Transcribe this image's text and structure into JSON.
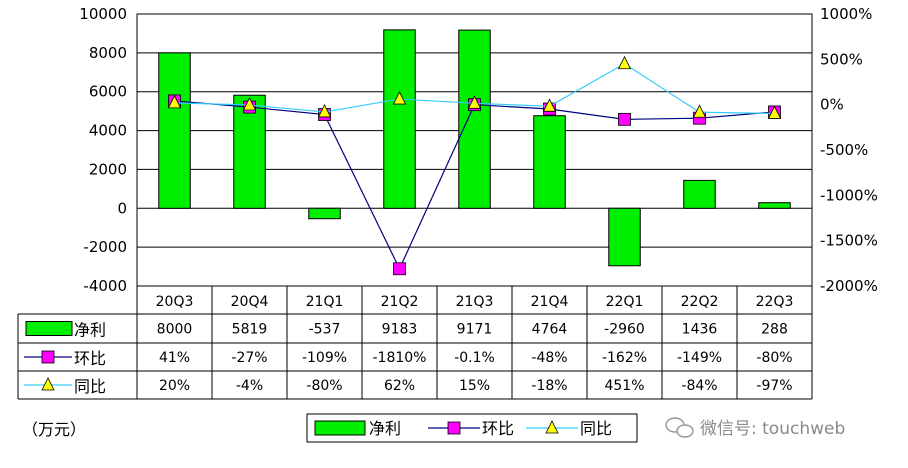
{
  "chart_data": {
    "type": "bar",
    "categories": [
      "20Q3",
      "20Q4",
      "21Q1",
      "21Q2",
      "21Q3",
      "21Q4",
      "22Q1",
      "22Q2",
      "22Q3"
    ],
    "series": [
      {
        "name": "净利",
        "kind": "bar",
        "axis": "left",
        "values": [
          8000,
          5819,
          -537,
          9183,
          9171,
          4764,
          -2960,
          1436,
          288
        ],
        "labels": [
          "8000",
          "5819",
          "-537",
          "9183",
          "9171",
          "4764",
          "-2960",
          "1436",
          "288"
        ],
        "color": "#00ee00"
      },
      {
        "name": "环比",
        "kind": "line",
        "axis": "right",
        "marker": "square",
        "values": [
          41,
          -27,
          -109,
          -1810,
          -0.1,
          -48,
          -162,
          -149,
          -80
        ],
        "labels": [
          "41%",
          "-27%",
          "-109%",
          "-1810%",
          "-0.1%",
          "-48%",
          "-162%",
          "-149%",
          "-80%"
        ],
        "color": "#000080",
        "marker_color": "#ff00ff"
      },
      {
        "name": "同比",
        "kind": "line",
        "axis": "right",
        "marker": "triangle",
        "values": [
          20,
          -4,
          -80,
          62,
          15,
          -18,
          451,
          -84,
          -97
        ],
        "labels": [
          "20%",
          "-4%",
          "-80%",
          "62%",
          "15%",
          "-18%",
          "451%",
          "-84%",
          "-97%"
        ],
        "color": "#33ccff",
        "marker_color": "#ffff00"
      }
    ],
    "left_axis": {
      "min": -4000,
      "max": 10000,
      "step": 2000,
      "ticks": [
        "10000",
        "8000",
        "6000",
        "4000",
        "2000",
        "0",
        "-2000",
        "-4000"
      ]
    },
    "right_axis": {
      "min": -2000,
      "max": 1000,
      "step": 500,
      "ticks": [
        "1000%",
        "500%",
        "0%",
        "-500%",
        "-1000%",
        "-1500%",
        "-2000%"
      ]
    },
    "grid": true,
    "legend_position": "bottom",
    "unit_label": "（万元）"
  },
  "watermark": "微信号: touchweb"
}
